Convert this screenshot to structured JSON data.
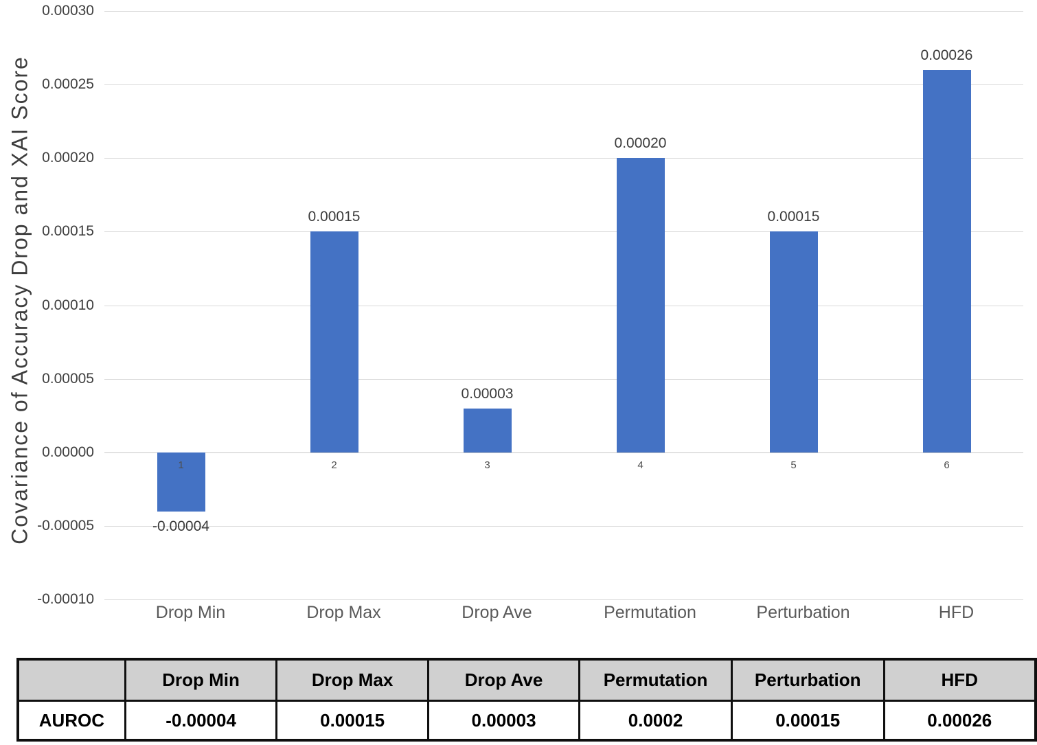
{
  "chart_data": {
    "type": "bar",
    "title": "",
    "xlabel": "",
    "ylabel": "Covariance of Accuracy Drop and XAI Score",
    "categories": [
      "Drop Min",
      "Drop Max",
      "Drop Ave",
      "Permutation",
      "Perturbation",
      "HFD"
    ],
    "category_indices": [
      "1",
      "2",
      "3",
      "4",
      "5",
      "6"
    ],
    "series_name": "AUROC",
    "values": [
      -4e-05,
      0.00015,
      3e-05,
      0.0002,
      0.00015,
      0.00026
    ],
    "data_labels": [
      "-0.00004",
      "0.00015",
      "0.00003",
      "0.00020",
      "0.00015",
      "0.00026"
    ],
    "ylim": [
      -0.0001,
      0.0003
    ],
    "ytick_values": [
      0.0003,
      0.00025,
      0.0002,
      0.00015,
      0.0001,
      5e-05,
      0,
      -5e-05,
      -0.0001
    ],
    "ytick_labels": [
      "0.00030",
      "0.00025",
      "0.00020",
      "0.00015",
      "0.00010",
      "0.00005",
      "0.00000",
      "-0.00005",
      "-0.00010"
    ],
    "grid": true,
    "legend": false
  },
  "table": {
    "corner_label": "",
    "columns": [
      "Drop Min",
      "Drop Max",
      "Drop Ave",
      "Permutation",
      "Perturbation",
      "HFD"
    ],
    "rows": [
      {
        "label": "AUROC",
        "values": [
          "-0.00004",
          "0.00015",
          "0.00003",
          "0.0002",
          "0.00015",
          "0.00026"
        ]
      }
    ]
  },
  "colors": {
    "bar": "#4472c4",
    "gridline": "#d9d9d9",
    "zero_axis": "#c6c6c6",
    "tick_text": "#404040",
    "category_text": "#595959",
    "value_label_text": "#3b3b3b",
    "axis_title_text": "#3d3d3d",
    "table_header_bg": "#d0d0d0",
    "table_border": "#0f0f0f",
    "background": "#ffffff"
  }
}
